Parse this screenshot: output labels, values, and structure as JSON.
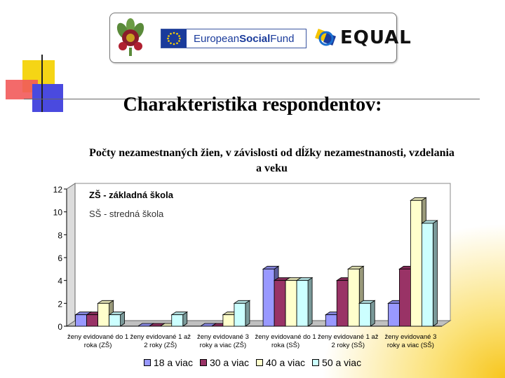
{
  "header": {
    "esf_text_regular": "European ",
    "esf_text_bold": "Social",
    "esf_text_end": " Fund",
    "equal_text": "EQUAL"
  },
  "slide_title": "Charakteristika respondentov:",
  "notes": {
    "zs": "ZŠ - základná škola",
    "ss": "SŠ - stredná škola"
  },
  "colors": {
    "series": [
      "#9999ff",
      "#993366",
      "#ffffcc",
      "#ccffff"
    ]
  },
  "chart_data": {
    "type": "bar",
    "style": "3d-clustered-column",
    "title_line1": "Počty nezamestnaných žien, v  závislosti od dĺžky nezamestnanosti, vzdelania",
    "title_line2": "a veku",
    "categories": [
      [
        "ženy evidované do 1",
        "roka (ZŠ)"
      ],
      [
        "ženy evidované 1 až",
        "2 roky (ZŠ)"
      ],
      [
        "ženy evidované 3",
        "roky a viac (ZŠ)"
      ],
      [
        "ženy evidované do 1",
        "roka (SŠ)"
      ],
      [
        "ženy evidované 1 až",
        "2 roky (SŠ)"
      ],
      [
        "ženy evidované 3",
        "roky a viac (SŠ)"
      ]
    ],
    "series": [
      {
        "name": "18 a viac",
        "values": [
          1,
          0,
          0,
          5,
          1,
          2
        ]
      },
      {
        "name": "30 a viac",
        "values": [
          1,
          0,
          0,
          4,
          4,
          5
        ]
      },
      {
        "name": "40 a viac",
        "values": [
          2,
          0,
          1,
          4,
          5,
          11
        ]
      },
      {
        "name": "50 a viac",
        "values": [
          1,
          1,
          2,
          4,
          2,
          9
        ]
      }
    ],
    "y_ticks": [
      "0",
      "2",
      "4",
      "6",
      "8",
      "10",
      "12"
    ],
    "ylim": [
      0,
      12
    ],
    "legend_position": "bottom",
    "grid": false
  }
}
